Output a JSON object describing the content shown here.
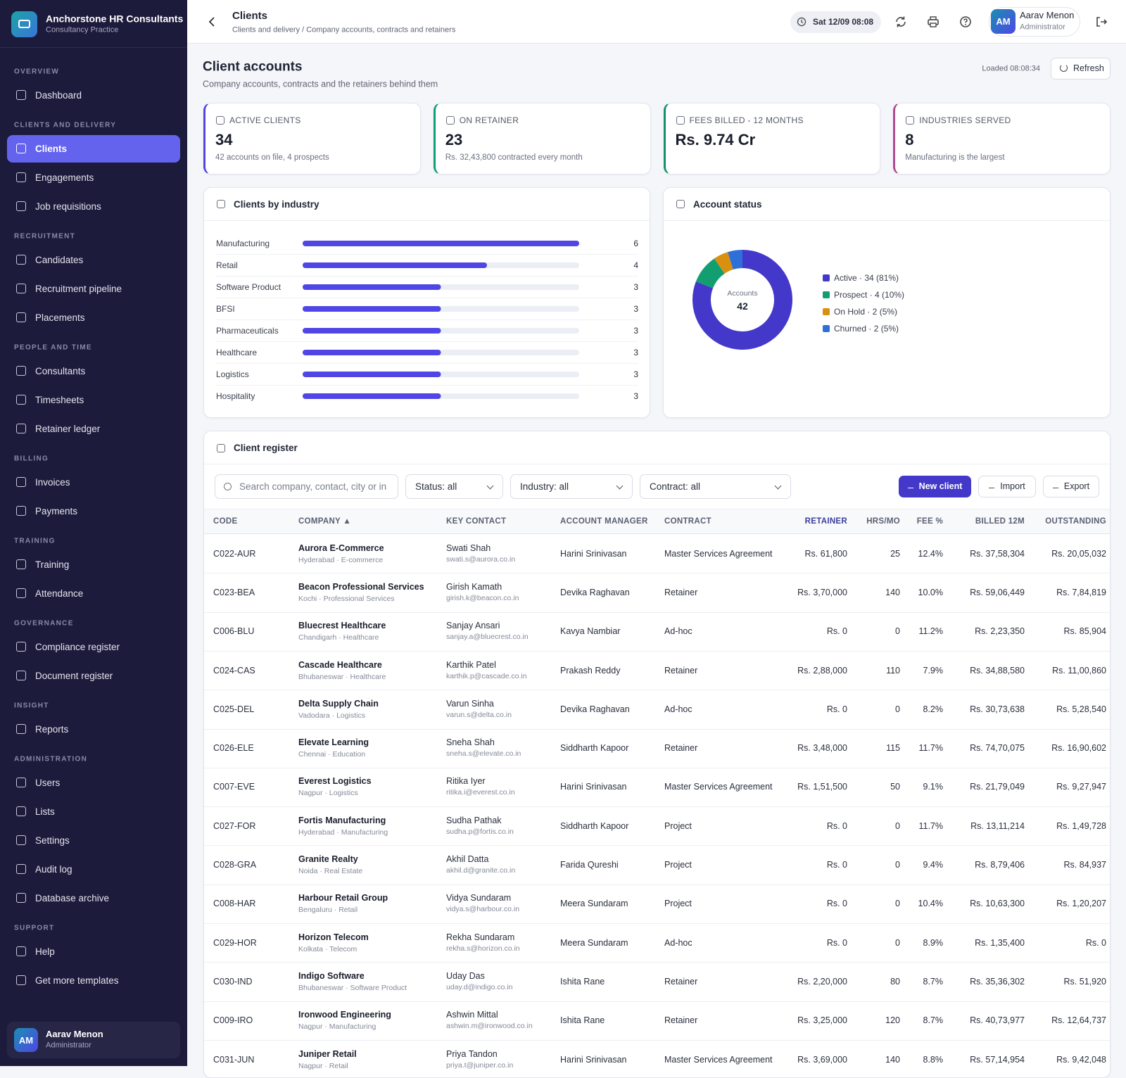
{
  "sidebar": {
    "brand": {
      "initials": "",
      "name": "Anchorstone HR Consultants",
      "tagline": "Consultancy Practice"
    },
    "sections": [
      {
        "title": "OVERVIEW",
        "items": [
          "Dashboard"
        ]
      },
      {
        "title": "CLIENTS AND DELIVERY",
        "items": [
          "Clients",
          "Engagements",
          "Job requisitions"
        ]
      },
      {
        "title": "RECRUITMENT",
        "items": [
          "Candidates",
          "Recruitment pipeline",
          "Placements"
        ]
      },
      {
        "title": "PEOPLE AND TIME",
        "items": [
          "Consultants",
          "Timesheets",
          "Retainer ledger"
        ]
      },
      {
        "title": "BILLING",
        "items": [
          "Invoices",
          "Payments"
        ]
      },
      {
        "title": "TRAINING",
        "items": [
          "Training",
          "Attendance"
        ]
      },
      {
        "title": "GOVERNANCE",
        "items": [
          "Compliance register",
          "Document register"
        ]
      },
      {
        "title": "INSIGHT",
        "items": [
          "Reports"
        ]
      },
      {
        "title": "ADMINISTRATION",
        "items": [
          "Users",
          "Lists",
          "Settings",
          "Audit log",
          "Database archive"
        ]
      },
      {
        "title": "SUPPORT",
        "items": [
          "Help",
          "Get more templates"
        ]
      }
    ],
    "user": {
      "initials": "AM",
      "name": "Aarav Menon",
      "role": "Administrator"
    }
  },
  "topbar": {
    "title": "Clients",
    "breadcrumb": "Clients and delivery / Company accounts, contracts and retainers",
    "datetime": "Sat 12/09 08:08",
    "user": {
      "initials": "AM",
      "name": "Aarav Menon",
      "role": "Administrator"
    }
  },
  "header": {
    "title": "Client accounts",
    "subtitle": "Company accounts, contracts and the retainers behind them",
    "loaded": "Loaded 08:08:34",
    "refresh": "Refresh"
  },
  "kpis": [
    {
      "label": "ACTIVE CLIENTS",
      "value": "34",
      "note": "42 accounts on file, 4 prospects",
      "color": "#4f46e5"
    },
    {
      "label": "ON RETAINER",
      "value": "23",
      "note": "Rs. 32,43,800 contracted every month",
      "color": "#0f9f76"
    },
    {
      "label": "FEES BILLED - 12 MONTHS",
      "value": "Rs. 9.74 Cr",
      "note": "",
      "color": "#10936b"
    },
    {
      "label": "INDUSTRIES SERVED",
      "value": "8",
      "note": "Manufacturing is the largest",
      "color": "#b24a8f"
    }
  ],
  "chart_data": [
    {
      "type": "bar",
      "orientation": "horizontal",
      "title": "Clients by industry",
      "categories": [
        "Manufacturing",
        "Retail",
        "Software Product",
        "BFSI",
        "Pharmaceuticals",
        "Healthcare",
        "Logistics",
        "Hospitality"
      ],
      "values": [
        6,
        4,
        3,
        3,
        3,
        3,
        3,
        3
      ],
      "xlim": [
        0,
        6
      ],
      "color": "#4f46e5",
      "track_color": "#eceef5"
    },
    {
      "type": "pie",
      "title": "Account status",
      "categories": [
        "Active · 34 (81%)",
        "Prospect · 4 (10%)",
        "On Hold · 2 (5%)",
        "Churned · 2 (5%)"
      ],
      "values": [
        34,
        4,
        2,
        2
      ],
      "colors": [
        "#4338ca",
        "#139e72",
        "#d9900f",
        "#2f6fd8"
      ],
      "center_label": "Accounts",
      "center_value": "42"
    }
  ],
  "register": {
    "title": "Client register",
    "search": "Search company, contact, city or in",
    "filters": [
      "Status: all",
      "Industry: all",
      "Contract: all"
    ],
    "buttons": [
      "New client",
      "Import",
      "Export"
    ],
    "columns": [
      "CODE",
      "COMPANY ▲",
      "KEY CONTACT",
      "ACCOUNT MANAGER",
      "CONTRACT",
      "RETAINER",
      "HRS/MO",
      "FEE %",
      "BILLED 12M",
      "OUTSTANDING"
    ],
    "rows": [
      [
        "C022-AUR",
        "Aurora E-Commerce",
        "Hyderabad · E-commerce",
        "Swati Shah",
        "swati.s@aurora.co.in",
        "Harini Srinivasan",
        "Master Services Agreement",
        "Rs. 61,800",
        "25",
        "12.4%",
        "Rs. 37,58,304",
        "Rs. 20,05,032"
      ],
      [
        "C023-BEA",
        "Beacon Professional Services",
        "Kochi · Professional Services",
        "Girish Kamath",
        "girish.k@beacon.co.in",
        "Devika Raghavan",
        "Retainer",
        "Rs. 3,70,000",
        "140",
        "10.0%",
        "Rs. 59,06,449",
        "Rs. 7,84,819"
      ],
      [
        "C006-BLU",
        "Bluecrest Healthcare",
        "Chandigarh · Healthcare",
        "Sanjay Ansari",
        "sanjay.a@bluecrest.co.in",
        "Kavya Nambiar",
        "Ad-hoc",
        "Rs. 0",
        "0",
        "11.2%",
        "Rs. 2,23,350",
        "Rs. 85,904"
      ],
      [
        "C024-CAS",
        "Cascade Healthcare",
        "Bhubaneswar · Healthcare",
        "Karthik Patel",
        "karthik.p@cascade.co.in",
        "Prakash Reddy",
        "Retainer",
        "Rs. 2,88,000",
        "110",
        "7.9%",
        "Rs. 34,88,580",
        "Rs. 11,00,860"
      ],
      [
        "C025-DEL",
        "Delta Supply Chain",
        "Vadodara · Logistics",
        "Varun Sinha",
        "varun.s@delta.co.in",
        "Devika Raghavan",
        "Ad-hoc",
        "Rs. 0",
        "0",
        "8.2%",
        "Rs. 30,73,638",
        "Rs. 5,28,540"
      ],
      [
        "C026-ELE",
        "Elevate Learning",
        "Chennai · Education",
        "Sneha Shah",
        "sneha.s@elevate.co.in",
        "Siddharth Kapoor",
        "Retainer",
        "Rs. 3,48,000",
        "115",
        "11.7%",
        "Rs. 74,70,075",
        "Rs. 16,90,602"
      ],
      [
        "C007-EVE",
        "Everest Logistics",
        "Nagpur · Logistics",
        "Ritika Iyer",
        "ritika.i@everest.co.in",
        "Harini Srinivasan",
        "Master Services Agreement",
        "Rs. 1,51,500",
        "50",
        "9.1%",
        "Rs. 21,79,049",
        "Rs. 9,27,947"
      ],
      [
        "C027-FOR",
        "Fortis Manufacturing",
        "Hyderabad · Manufacturing",
        "Sudha Pathak",
        "sudha.p@fortis.co.in",
        "Siddharth Kapoor",
        "Project",
        "Rs. 0",
        "0",
        "11.7%",
        "Rs. 13,11,214",
        "Rs. 1,49,728"
      ],
      [
        "C028-GRA",
        "Granite Realty",
        "Noida · Real Estate",
        "Akhil Datta",
        "akhil.d@granite.co.in",
        "Farida Qureshi",
        "Project",
        "Rs. 0",
        "0",
        "9.4%",
        "Rs. 8,79,406",
        "Rs. 84,937"
      ],
      [
        "C008-HAR",
        "Harbour Retail Group",
        "Bengaluru · Retail",
        "Vidya Sundaram",
        "vidya.s@harbour.co.in",
        "Meera Sundaram",
        "Project",
        "Rs. 0",
        "0",
        "10.4%",
        "Rs. 10,63,300",
        "Rs. 1,20,207"
      ],
      [
        "C029-HOR",
        "Horizon Telecom",
        "Kolkata · Telecom",
        "Rekha Sundaram",
        "rekha.s@horizon.co.in",
        "Meera Sundaram",
        "Ad-hoc",
        "Rs. 0",
        "0",
        "8.9%",
        "Rs. 1,35,400",
        "Rs. 0"
      ],
      [
        "C030-IND",
        "Indigo Software",
        "Bhubaneswar · Software Product",
        "Uday Das",
        "uday.d@indigo.co.in",
        "Ishita Rane",
        "Retainer",
        "Rs. 2,20,000",
        "80",
        "8.7%",
        "Rs. 35,36,302",
        "Rs. 51,920"
      ],
      [
        "C009-IRO",
        "Ironwood Engineering",
        "Nagpur · Manufacturing",
        "Ashwin Mittal",
        "ashwin.m@ironwood.co.in",
        "Ishita Rane",
        "Retainer",
        "Rs. 3,25,000",
        "120",
        "8.7%",
        "Rs. 40,73,977",
        "Rs. 12,64,737"
      ],
      [
        "C031-JUN",
        "Juniper Retail",
        "Nagpur · Retail",
        "Priya Tandon",
        "priya.t@juniper.co.in",
        "Harini Srinivasan",
        "Master Services Agreement",
        "Rs. 3,69,000",
        "140",
        "8.8%",
        "Rs. 57,14,954",
        "Rs. 9,42,048"
      ]
    ]
  }
}
